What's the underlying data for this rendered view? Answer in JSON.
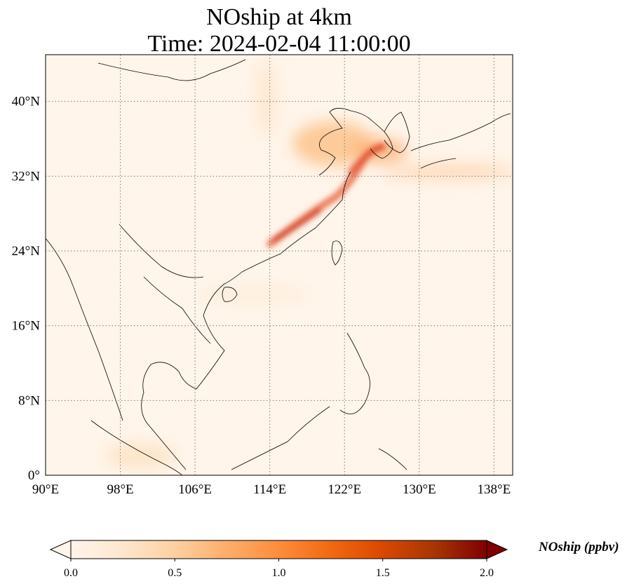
{
  "title": {
    "line1": "NOship at 4km",
    "line2": "Time: 2024-02-04 11:00:00"
  },
  "map": {
    "lon_range": [
      90,
      140
    ],
    "lat_range": [
      0,
      45
    ],
    "lon_ticks": [
      {
        "value": 90,
        "label": "90°E"
      },
      {
        "value": 98,
        "label": "98°E"
      },
      {
        "value": 106,
        "label": "106°E"
      },
      {
        "value": 114,
        "label": "114°E"
      },
      {
        "value": 122,
        "label": "122°E"
      },
      {
        "value": 130,
        "label": "130°E"
      },
      {
        "value": 138,
        "label": "138°E"
      }
    ],
    "lat_ticks": [
      {
        "value": 0,
        "label": "0°"
      },
      {
        "value": 8,
        "label": "8°N"
      },
      {
        "value": 16,
        "label": "16°N"
      },
      {
        "value": 24,
        "label": "24°N"
      },
      {
        "value": 32,
        "label": "32°N"
      },
      {
        "value": 40,
        "label": "40°N"
      }
    ],
    "gridlines": true
  },
  "colorbar": {
    "label": "NOship (ppbv)",
    "range": [
      0.0,
      2.0
    ],
    "ticks": [
      {
        "value": 0.0,
        "label": "0.0"
      },
      {
        "value": 0.5,
        "label": "0.5"
      },
      {
        "value": 1.0,
        "label": "1.0"
      },
      {
        "value": 1.5,
        "label": "1.5"
      },
      {
        "value": 2.0,
        "label": "2.0"
      }
    ],
    "colormap": [
      "#fff5eb",
      "#fee6ce",
      "#fdd0a2",
      "#fdae6b",
      "#fd8d3c",
      "#f16913",
      "#d94801",
      "#a63603",
      "#7f0000"
    ],
    "extend": "both"
  },
  "colors": {
    "coastline": "#000000",
    "grid": "#7a7a7a",
    "background_field": "#fff5ea"
  }
}
